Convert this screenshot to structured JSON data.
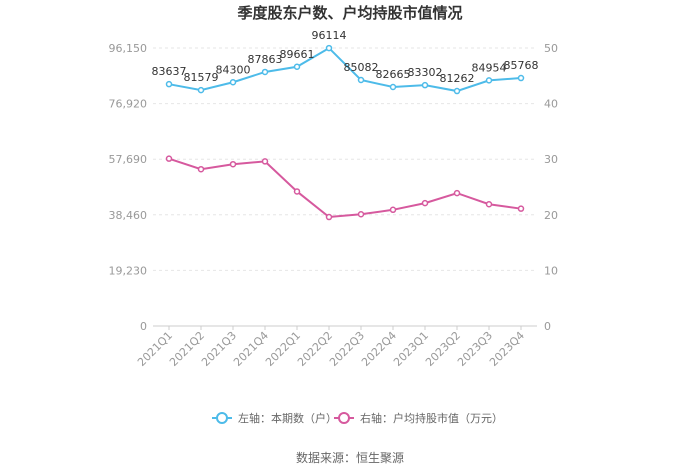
{
  "chart_data": {
    "type": "line",
    "title": "季度股东户数、户均持股市值情况",
    "categories": [
      "2021Q1",
      "2021Q2",
      "2021Q3",
      "2021Q4",
      "2022Q1",
      "2022Q2",
      "2022Q3",
      "2022Q4",
      "2023Q1",
      "2023Q2",
      "2023Q3",
      "2023Q4"
    ],
    "left_axis": {
      "ticks": [
        "0",
        "19,230",
        "38,460",
        "57,690",
        "76,920",
        "96,150"
      ],
      "range": [
        0,
        96150
      ]
    },
    "right_axis": {
      "ticks": [
        "0",
        "10",
        "20",
        "30",
        "40",
        "50"
      ],
      "range": [
        0,
        50
      ]
    },
    "series": [
      {
        "name": "左轴：本期数（户）",
        "axis": "left",
        "color": "#4dbbe9",
        "values": [
          83637,
          81579,
          84300,
          87863,
          89661,
          96114,
          85082,
          82665,
          83302,
          81262,
          84954,
          85768
        ],
        "labels": [
          "83637",
          "81579",
          "84300",
          "87863",
          "89661",
          "96114",
          "85082",
          "82665",
          "83302",
          "81262",
          "84954",
          "85768"
        ]
      },
      {
        "name": "右轴：户均持股市值（万元）",
        "axis": "right",
        "color": "#d6599e",
        "values": [
          30.1,
          28.2,
          29.1,
          29.6,
          24.2,
          19.6,
          20.1,
          20.9,
          22.1,
          23.9,
          21.9,
          21.1
        ]
      }
    ],
    "source": "数据来源：恒生聚源"
  }
}
